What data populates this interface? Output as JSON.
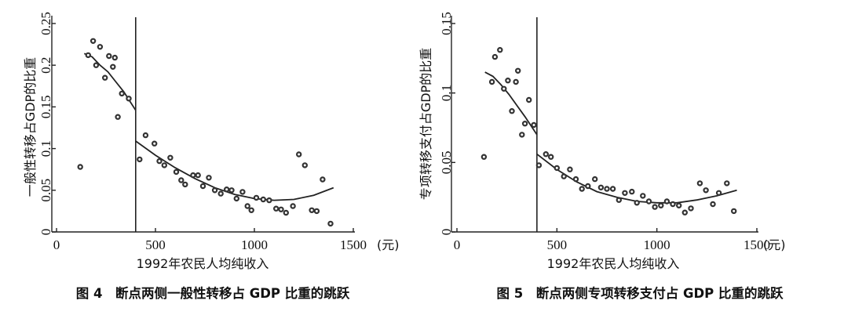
{
  "figures": [
    {
      "caption": "图 4　断点两侧一般性转移占 GDP 比重的跳跃",
      "xlabel": "1992年农民人均纯收入",
      "ylabel": "一般性转移占GDP的比重",
      "unit": "(元)"
    },
    {
      "caption": "图 5　断点两侧专项转移支付占 GDP 比重的跳跃",
      "xlabel": "1992年农民人均纯收入",
      "ylabel": "专项转移支付占GDP的比重",
      "unit": "(元)"
    }
  ],
  "chart_data": [
    {
      "type": "scatter",
      "title": "图 4　断点两侧一般性转移占 GDP 比重的跳跃",
      "xlabel": "1992年农民人均纯收入",
      "ylabel": "一般性转移占GDP的比重",
      "xlim": [
        0,
        1500
      ],
      "ylim": [
        0,
        0.25
      ],
      "xticks": [
        0,
        500,
        1000,
        1500
      ],
      "yticks": [
        0,
        0.05,
        0.1,
        0.15,
        0.2,
        0.25
      ],
      "ytick_labels": [
        "0",
        "0.05",
        "0.1",
        "0.15",
        "0.2",
        "0.25"
      ],
      "cutoff": 400,
      "points": [
        [
          120,
          0.078
        ],
        [
          160,
          0.212
        ],
        [
          185,
          0.229
        ],
        [
          200,
          0.2
        ],
        [
          220,
          0.222
        ],
        [
          245,
          0.185
        ],
        [
          265,
          0.211
        ],
        [
          285,
          0.198
        ],
        [
          295,
          0.209
        ],
        [
          310,
          0.138
        ],
        [
          330,
          0.166
        ],
        [
          365,
          0.16
        ],
        [
          420,
          0.087
        ],
        [
          450,
          0.116
        ],
        [
          495,
          0.106
        ],
        [
          520,
          0.085
        ],
        [
          545,
          0.08
        ],
        [
          575,
          0.089
        ],
        [
          605,
          0.072
        ],
        [
          630,
          0.062
        ],
        [
          650,
          0.057
        ],
        [
          690,
          0.068
        ],
        [
          715,
          0.068
        ],
        [
          740,
          0.055
        ],
        [
          770,
          0.065
        ],
        [
          800,
          0.05
        ],
        [
          830,
          0.046
        ],
        [
          860,
          0.051
        ],
        [
          885,
          0.05
        ],
        [
          910,
          0.04
        ],
        [
          940,
          0.048
        ],
        [
          965,
          0.031
        ],
        [
          985,
          0.026
        ],
        [
          1010,
          0.041
        ],
        [
          1045,
          0.039
        ],
        [
          1075,
          0.038
        ],
        [
          1110,
          0.028
        ],
        [
          1135,
          0.027
        ],
        [
          1160,
          0.023
        ],
        [
          1195,
          0.031
        ],
        [
          1225,
          0.093
        ],
        [
          1255,
          0.08
        ],
        [
          1290,
          0.026
        ],
        [
          1315,
          0.025
        ],
        [
          1345,
          0.063
        ],
        [
          1385,
          0.01
        ]
      ],
      "fit_left": [
        [
          140,
          0.214
        ],
        [
          180,
          0.21
        ],
        [
          220,
          0.2
        ],
        [
          260,
          0.192
        ],
        [
          300,
          0.18
        ],
        [
          340,
          0.168
        ],
        [
          400,
          0.146
        ]
      ],
      "fit_right": [
        [
          400,
          0.109
        ],
        [
          500,
          0.092
        ],
        [
          600,
          0.077
        ],
        [
          700,
          0.064
        ],
        [
          800,
          0.053
        ],
        [
          900,
          0.045
        ],
        [
          1000,
          0.04
        ],
        [
          1100,
          0.038
        ],
        [
          1200,
          0.039
        ],
        [
          1300,
          0.044
        ],
        [
          1400,
          0.053
        ]
      ]
    },
    {
      "type": "scatter",
      "title": "图 5　断点两侧专项转移支付占 GDP 比重的跳跃",
      "xlabel": "1992年农民人均纯收入",
      "ylabel": "专项转移支付占GDP的比重",
      "xlim": [
        0,
        1500
      ],
      "ylim": [
        0,
        0.15
      ],
      "xticks": [
        0,
        500,
        1000,
        1500
      ],
      "yticks": [
        0,
        0.05,
        0.1,
        0.15
      ],
      "ytick_labels": [
        "0",
        "0.05",
        "0.1",
        "0.15"
      ],
      "cutoff": 400,
      "points": [
        [
          135,
          0.054
        ],
        [
          175,
          0.108
        ],
        [
          190,
          0.126
        ],
        [
          215,
          0.131
        ],
        [
          235,
          0.103
        ],
        [
          255,
          0.109
        ],
        [
          275,
          0.087
        ],
        [
          295,
          0.108
        ],
        [
          305,
          0.116
        ],
        [
          325,
          0.07
        ],
        [
          340,
          0.078
        ],
        [
          360,
          0.095
        ],
        [
          385,
          0.077
        ],
        [
          410,
          0.048
        ],
        [
          445,
          0.056
        ],
        [
          470,
          0.054
        ],
        [
          500,
          0.046
        ],
        [
          535,
          0.04
        ],
        [
          565,
          0.045
        ],
        [
          595,
          0.038
        ],
        [
          625,
          0.031
        ],
        [
          655,
          0.033
        ],
        [
          690,
          0.038
        ],
        [
          720,
          0.032
        ],
        [
          750,
          0.031
        ],
        [
          780,
          0.031
        ],
        [
          810,
          0.023
        ],
        [
          840,
          0.028
        ],
        [
          875,
          0.029
        ],
        [
          900,
          0.021
        ],
        [
          930,
          0.026
        ],
        [
          960,
          0.022
        ],
        [
          990,
          0.018
        ],
        [
          1020,
          0.019
        ],
        [
          1050,
          0.022
        ],
        [
          1080,
          0.02
        ],
        [
          1110,
          0.019
        ],
        [
          1140,
          0.014
        ],
        [
          1170,
          0.017
        ],
        [
          1215,
          0.035
        ],
        [
          1245,
          0.03
        ],
        [
          1280,
          0.02
        ],
        [
          1310,
          0.028
        ],
        [
          1350,
          0.035
        ],
        [
          1385,
          0.015
        ]
      ],
      "fit_left": [
        [
          140,
          0.115
        ],
        [
          180,
          0.112
        ],
        [
          220,
          0.106
        ],
        [
          260,
          0.099
        ],
        [
          300,
          0.091
        ],
        [
          340,
          0.083
        ],
        [
          400,
          0.07
        ]
      ],
      "fit_right": [
        [
          400,
          0.056
        ],
        [
          500,
          0.045
        ],
        [
          600,
          0.036
        ],
        [
          700,
          0.029
        ],
        [
          800,
          0.025
        ],
        [
          900,
          0.022
        ],
        [
          1000,
          0.021
        ],
        [
          1100,
          0.021
        ],
        [
          1200,
          0.023
        ],
        [
          1300,
          0.026
        ],
        [
          1400,
          0.03
        ]
      ]
    }
  ]
}
